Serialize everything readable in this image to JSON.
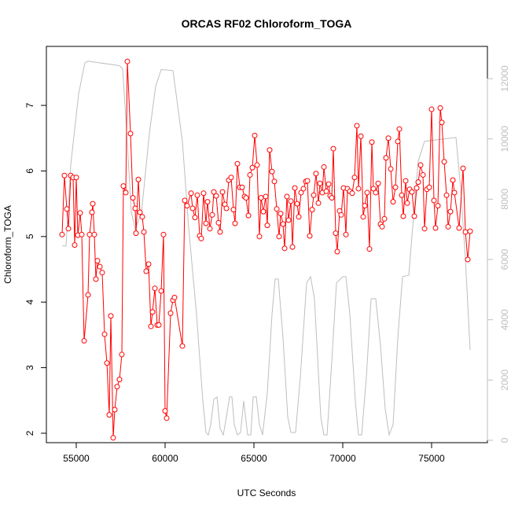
{
  "chart_data": {
    "type": "line",
    "title": "ORCAS RF02 Chloroform_TOGA",
    "xlabel": "UTC Seconds",
    "ylabel": "Chloroform_TOGA",
    "xlim": [
      53319,
      78142
    ],
    "ylim": [
      1.856,
      7.9
    ],
    "y2lim": [
      -78,
      13070
    ],
    "xticks": [
      55000,
      60000,
      65000,
      70000,
      75000
    ],
    "yticks": [
      2,
      3,
      4,
      5,
      6,
      7
    ],
    "y2ticks": [
      0,
      2000,
      4000,
      6000,
      8000,
      10000,
      12000
    ],
    "y2color": "#bebebe",
    "series": [
      {
        "color": "#ff0000",
        "marker": "circle",
        "x": [
          54203,
          54336,
          54469,
          54558,
          54690,
          54823,
          54912,
          55000,
          55089,
          55221,
          55310,
          55443,
          55664,
          55752,
          55885,
          55929,
          56018,
          56106,
          56195,
          56328,
          56460,
          56593,
          56726,
          56858,
          56947,
          57080,
          57168,
          57301,
          57434,
          57566,
          57655,
          57788,
          57876,
          58053,
          58186,
          58319,
          58363,
          58496,
          58584,
          58717,
          58806,
          58938,
          59071,
          59204,
          59292,
          59425,
          59558,
          59646,
          59779,
          59912,
          60000,
          60089,
          60310,
          60443,
          60531,
          60974,
          61107,
          61239,
          61461,
          61549,
          61682,
          61815,
          61947,
          62036,
          62169,
          62301,
          62390,
          62523,
          62655,
          62744,
          62877,
          63009,
          63098,
          63231,
          63363,
          63452,
          63585,
          63717,
          63850,
          63939,
          64071,
          64204,
          64337,
          64470,
          64558,
          64691,
          64779,
          64912,
          65045,
          65178,
          65310,
          65399,
          65532,
          65664,
          65753,
          65886,
          66018,
          66151,
          66284,
          66417,
          66505,
          66638,
          66726,
          66859,
          66948,
          67080,
          67169,
          67302,
          67434,
          67523,
          67656,
          67788,
          67921,
          68010,
          68142,
          68275,
          68364,
          68496,
          68629,
          68718,
          68850,
          68939,
          69072,
          69204,
          69293,
          69381,
          69470,
          69603,
          69691,
          69824,
          69912,
          70045,
          70178,
          70266,
          70399,
          70532,
          70664,
          70797,
          70886,
          71019,
          71151,
          71240,
          71372,
          71505,
          71638,
          71727,
          71859,
          71992,
          72125,
          72213,
          72346,
          72435,
          72567,
          72700,
          72833,
          72966,
          73098,
          73187,
          73320,
          73408,
          73541,
          73629,
          73762,
          73895,
          74028,
          74160,
          74249,
          74381,
          74514,
          74603,
          74736,
          74868,
          75001,
          75134,
          75222,
          75355,
          75488,
          75576,
          75709,
          75842,
          75930,
          76063,
          76196,
          76284,
          76550,
          76771,
          76904,
          77036,
          77169
        ],
        "values": [
          5.03,
          5.93,
          5.42,
          5.12,
          5.93,
          5.9,
          4.87,
          5.9,
          5.02,
          5.36,
          5.03,
          3.41,
          4.11,
          5.03,
          5.37,
          5.5,
          5.03,
          4.35,
          4.63,
          4.54,
          4.45,
          3.51,
          3.07,
          2.28,
          3.79,
          1.93,
          2.36,
          2.71,
          2.82,
          3.2,
          5.77,
          5.67,
          7.67,
          6.57,
          5.59,
          5.43,
          5.05,
          5.87,
          5.37,
          5.3,
          5.07,
          4.47,
          4.58,
          3.63,
          3.85,
          4.21,
          3.65,
          3.65,
          4.17,
          5.03,
          2.34,
          2.23,
          3.83,
          4.03,
          4.07,
          3.33,
          5.55,
          5.47,
          5.66,
          5.43,
          5.29,
          5.63,
          5.01,
          4.97,
          5.66,
          5.2,
          5.53,
          5.12,
          5.33,
          5.68,
          5.62,
          5.21,
          5.07,
          5.68,
          5.49,
          5.43,
          5.86,
          5.9,
          5.41,
          5.2,
          6.11,
          5.75,
          5.75,
          5.61,
          5.59,
          5.32,
          5.94,
          6.05,
          6.54,
          6.09,
          5.0,
          5.59,
          5.38,
          5.61,
          5.17,
          6.32,
          5.99,
          5.84,
          5.42,
          5.0,
          5.35,
          5.19,
          4.82,
          5.61,
          5.25,
          5.54,
          4.84,
          5.74,
          5.5,
          5.3,
          5.67,
          5.73,
          5.84,
          5.85,
          5.01,
          5.41,
          5.63,
          5.96,
          5.51,
          5.81,
          5.67,
          6.06,
          5.69,
          5.8,
          5.62,
          5.59,
          6.34,
          5.05,
          4.77,
          5.39,
          5.33,
          5.74,
          5.03,
          5.73,
          5.69,
          5.66,
          5.9,
          6.69,
          5.73,
          6.53,
          5.3,
          5.47,
          5.67,
          4.81,
          6.44,
          5.73,
          5.67,
          5.81,
          5.19,
          5.15,
          5.27,
          6.2,
          6.5,
          6.03,
          5.53,
          5.75,
          6.45,
          6.64,
          5.63,
          5.31,
          5.85,
          5.51,
          5.72,
          5.68,
          5.31,
          5.74,
          5.83,
          6.09,
          5.94,
          5.12,
          5.72,
          5.75,
          6.94,
          5.55,
          5.13,
          5.47,
          6.96,
          6.74,
          6.14,
          5.63,
          5.15,
          5.38,
          5.86,
          5.67,
          5.13,
          6.04,
          5.07,
          4.65,
          5.08
        ]
      },
      {
        "color": "#bebebe",
        "axis": "y2",
        "x": [
          54203,
          54425,
          54690,
          55133,
          55487,
          55664,
          57434,
          57611,
          57788,
          58098,
          58319,
          58673,
          59115,
          59469,
          59779,
          60443,
          60620,
          60974,
          61328,
          61770,
          62124,
          62301,
          62434,
          62567,
          62744,
          62921,
          63098,
          63275,
          63452,
          63629,
          63762,
          63894,
          64071,
          64248,
          64425,
          64647,
          64824,
          64956,
          65133,
          65310,
          65487,
          65753,
          66018,
          66195,
          66372,
          66638,
          66903,
          67080,
          67346,
          67611,
          67965,
          68187,
          68408,
          68762,
          68939,
          69116,
          69381,
          69647,
          70001,
          70178,
          70399,
          70709,
          70886,
          71063,
          71328,
          71594,
          71859,
          72125,
          72390,
          72612,
          72833,
          73098,
          73364,
          73718,
          73895,
          74249,
          74603,
          76373,
          76638,
          76904,
          77169
        ],
        "values": [
          6450,
          6450,
          9140,
          11490,
          12530,
          12580,
          12430,
          12320,
          10700,
          7570,
          7000,
          7570,
          10180,
          11750,
          12300,
          12270,
          11490,
          9920,
          7050,
          4180,
          1310,
          260,
          180,
          520,
          1360,
          1440,
          390,
          180,
          780,
          1440,
          1440,
          520,
          180,
          260,
          1310,
          180,
          180,
          1440,
          1440,
          520,
          180,
          1570,
          4180,
          5350,
          5350,
          3390,
          780,
          260,
          260,
          2090,
          5220,
          5430,
          4700,
          780,
          180,
          180,
          2610,
          5220,
          5430,
          5430,
          4180,
          1310,
          180,
          180,
          2090,
          4700,
          4700,
          3130,
          1040,
          180,
          520,
          3390,
          5430,
          5480,
          6790,
          9270,
          9920,
          10050,
          8360,
          6010,
          3000
        ]
      }
    ]
  }
}
